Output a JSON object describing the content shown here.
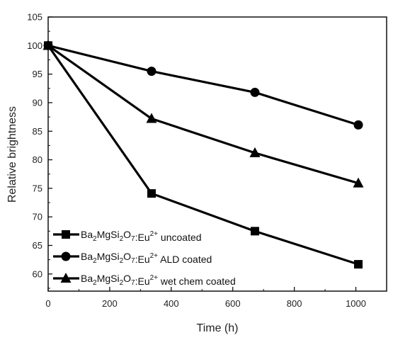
{
  "chart_data": {
    "type": "line",
    "xlabel": "Time (h)",
    "ylabel": "Relative brightness",
    "xlim": [
      0,
      1100
    ],
    "ylim": [
      57,
      105
    ],
    "x_ticks": [
      "0",
      "200",
      "400",
      "600",
      "800",
      "1000"
    ],
    "y_ticks": [
      "60",
      "65",
      "70",
      "75",
      "80",
      "85",
      "90",
      "95",
      "100",
      "105"
    ],
    "grid": false,
    "legend_position": "bottom-left",
    "series": [
      {
        "name": "Ba2MgSi2O7:Eu2+ uncoated",
        "marker": "square",
        "x": [
          0,
          336,
          672,
          1008
        ],
        "y": [
          100,
          74.1,
          67.5,
          61.7
        ]
      },
      {
        "name": "Ba2MgSi2O7:Eu2+ ALD coated",
        "marker": "circle",
        "x": [
          0,
          336,
          672,
          1008
        ],
        "y": [
          100,
          95.5,
          91.8,
          86.1
        ]
      },
      {
        "name": "Ba2MgSi2O7:Eu2+ wet chem coated",
        "marker": "triangle",
        "x": [
          0,
          336,
          672,
          1008
        ],
        "y": [
          100,
          87.2,
          81.2,
          75.9
        ]
      }
    ],
    "legend_labels": [
      {
        "formula_parts": [
          "Ba",
          "2",
          "MgSi",
          "2",
          "O",
          "7",
          ":Eu",
          "2+"
        ],
        "suffix": " uncoated"
      },
      {
        "formula_parts": [
          "Ba",
          "2",
          "MgSi",
          "2",
          "O",
          "7",
          ":Eu",
          "2+"
        ],
        "suffix": " ALD coated"
      },
      {
        "formula_parts": [
          "Ba",
          "2",
          "MgSi",
          "2",
          "O",
          "7",
          ":Eu",
          "2+"
        ],
        "suffix": " wet chem coated"
      }
    ]
  }
}
